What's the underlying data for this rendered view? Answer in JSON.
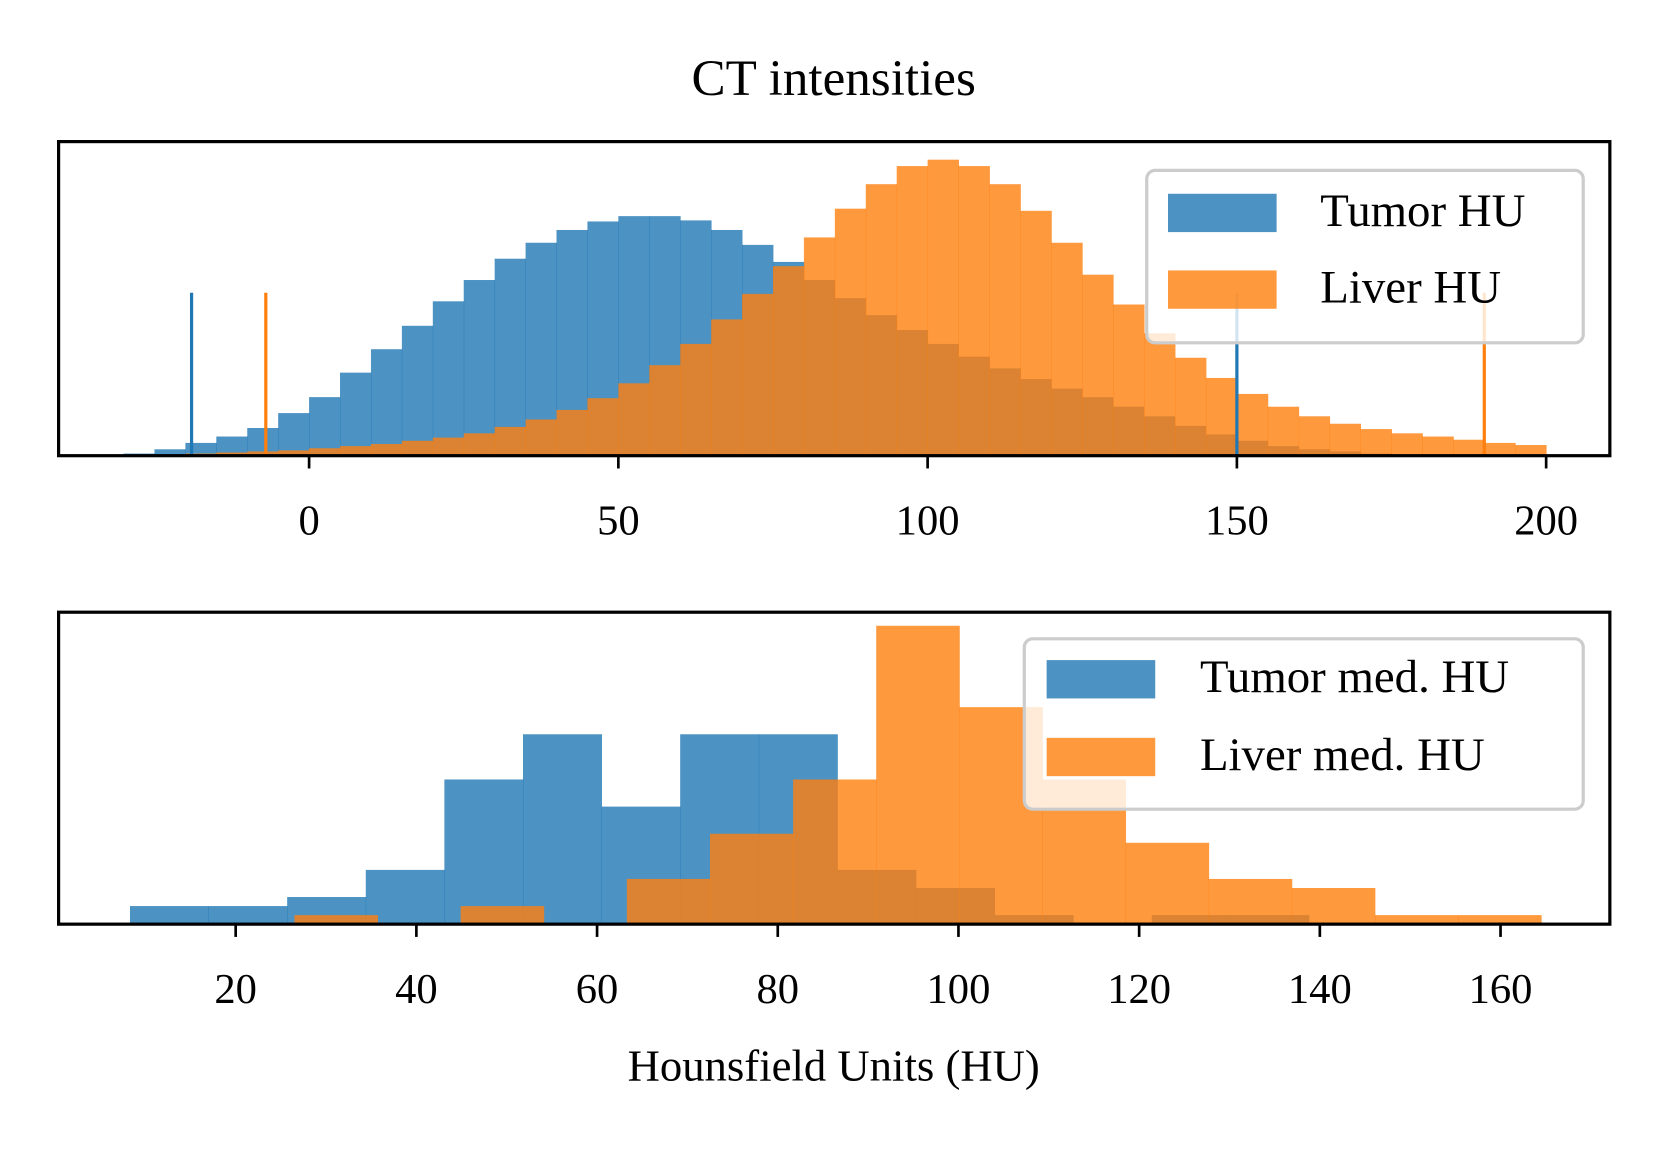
{
  "chart_data": [
    {
      "type": "histogram",
      "title": "CT intensities",
      "xlim": [
        -40.5,
        210.3
      ],
      "ylim": [
        0,
        295
      ],
      "xticks": [
        0,
        50,
        100,
        150,
        200
      ],
      "legend": "upper right",
      "series": [
        {
          "name": "Tumor HU",
          "color": "#1f77b4",
          "bins": [
            -30,
            -25,
            -20,
            -15,
            -10,
            -5,
            0,
            5,
            10,
            15,
            20,
            25,
            30,
            35,
            40,
            45,
            50,
            55,
            60,
            65,
            70,
            75,
            80,
            85,
            90,
            95,
            100,
            105,
            110,
            115,
            120,
            125,
            130,
            135,
            140,
            145,
            150,
            155,
            160,
            165,
            170,
            175,
            180,
            185,
            190,
            195,
            200
          ],
          "values": [
            2,
            6,
            12,
            18,
            26,
            40,
            55,
            78,
            100,
            122,
            145,
            165,
            185,
            200,
            212,
            220,
            225,
            225,
            221,
            212,
            198,
            182,
            165,
            148,
            132,
            118,
            105,
            93,
            82,
            72,
            63,
            55,
            46,
            37,
            28,
            20,
            14,
            9,
            6,
            4,
            2,
            1,
            1,
            0,
            0,
            0
          ],
          "vlines": [
            {
              "x": -19,
              "height": 153
            },
            {
              "x": 150,
              "height": 153
            }
          ]
        },
        {
          "name": "Liver HU",
          "color": "#ff7f0e",
          "bins": [
            -30,
            -25,
            -20,
            -15,
            -10,
            -5,
            0,
            5,
            10,
            15,
            20,
            25,
            30,
            35,
            40,
            45,
            50,
            55,
            60,
            65,
            70,
            75,
            80,
            85,
            90,
            95,
            100,
            105,
            110,
            115,
            120,
            125,
            130,
            135,
            140,
            145,
            150,
            155,
            160,
            165,
            170,
            175,
            180,
            185,
            190,
            195,
            200
          ],
          "values": [
            0,
            1,
            2,
            3,
            4,
            5,
            7,
            9,
            11,
            14,
            17,
            21,
            27,
            34,
            43,
            54,
            68,
            85,
            105,
            128,
            152,
            178,
            205,
            232,
            255,
            272,
            278,
            272,
            255,
            230,
            200,
            170,
            142,
            115,
            92,
            73,
            58,
            46,
            37,
            30,
            25,
            21,
            18,
            15,
            12,
            10
          ],
          "vlines": [
            {
              "x": -7,
              "height": 153
            },
            {
              "x": 190,
              "height": 153
            }
          ]
        }
      ]
    },
    {
      "type": "histogram",
      "xlabel": "Hounsfield Units (HU)",
      "xlim": [
        0.4,
        172.1
      ],
      "ylim": [
        0,
        34.5
      ],
      "xticks": [
        20,
        40,
        60,
        80,
        100,
        120,
        140,
        160
      ],
      "legend": "upper right",
      "series": [
        {
          "name": "Tumor med. HU",
          "color": "#1f77b4",
          "bins": [
            8.3,
            17.0,
            25.7,
            34.4,
            43.1,
            51.8,
            60.5,
            69.2,
            77.9,
            86.6,
            95.3,
            104.0,
            112.7,
            121.4,
            130.1,
            138.8
          ],
          "values": [
            2,
            2,
            3,
            6,
            16,
            21,
            13,
            21,
            21,
            6,
            4,
            1,
            0,
            1,
            1
          ]
        },
        {
          "name": "Liver med. HU",
          "color": "#ff7f0e",
          "bins": [
            26.5,
            35.7,
            44.9,
            54.1,
            63.3,
            72.5,
            81.7,
            90.9,
            100.1,
            109.3,
            118.5,
            127.7,
            136.9,
            146.1,
            155.3,
            164.5
          ],
          "values": [
            1,
            0,
            2,
            0,
            5,
            10,
            16,
            33,
            24,
            16,
            9,
            5,
            4,
            1,
            1
          ]
        }
      ]
    }
  ]
}
